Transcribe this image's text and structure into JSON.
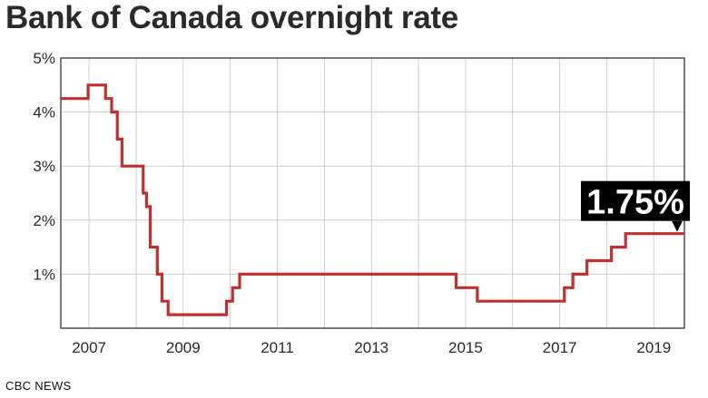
{
  "header": {
    "title": "Bank of Canada overnight rate"
  },
  "footer": {
    "source": "CBC NEWS"
  },
  "colors": {
    "line": "#c0302f",
    "grid": "#cfcfcf",
    "frame": "#333333",
    "callout_bg": "#000000",
    "callout_text": "#ffffff"
  },
  "chart_data": {
    "type": "line",
    "title": "Bank of Canada overnight rate",
    "xlabel": "",
    "ylabel": "",
    "xlim": [
      2006.4,
      2019.65
    ],
    "ylim": [
      0,
      5
    ],
    "y_ticks": [
      1,
      2,
      3,
      4,
      5
    ],
    "y_tick_labels": [
      "1%",
      "2%",
      "3%",
      "4%",
      "5%"
    ],
    "x_ticks": [
      2007,
      2009,
      2011,
      2013,
      2015,
      2017,
      2019
    ],
    "x_tick_labels": [
      "2007",
      "2009",
      "2011",
      "2013",
      "2015",
      "2017",
      "2019"
    ],
    "grid": true,
    "step": "post",
    "series": [
      {
        "x": [
          2006.4,
          2006.98,
          2007.35,
          2007.48,
          2007.6,
          2007.7,
          2008.15,
          2008.22,
          2008.3,
          2008.45,
          2008.55,
          2008.68,
          2008.82,
          2009.92,
          2010.05,
          2010.2,
          2014.8,
          2015.25,
          2017.1,
          2017.28,
          2017.58,
          2018.1,
          2018.4,
          2018.85,
          2019.65
        ],
        "y": [
          4.25,
          4.5,
          4.25,
          4.0,
          3.5,
          3.0,
          2.5,
          2.25,
          1.5,
          1.0,
          0.5,
          0.25,
          0.25,
          0.5,
          0.75,
          1.0,
          0.75,
          0.5,
          0.75,
          1.0,
          1.25,
          1.5,
          1.75,
          1.75,
          1.75
        ]
      }
    ],
    "annotations": [
      {
        "text": "1.75%",
        "x": 2019.65,
        "y": 1.75
      }
    ]
  }
}
